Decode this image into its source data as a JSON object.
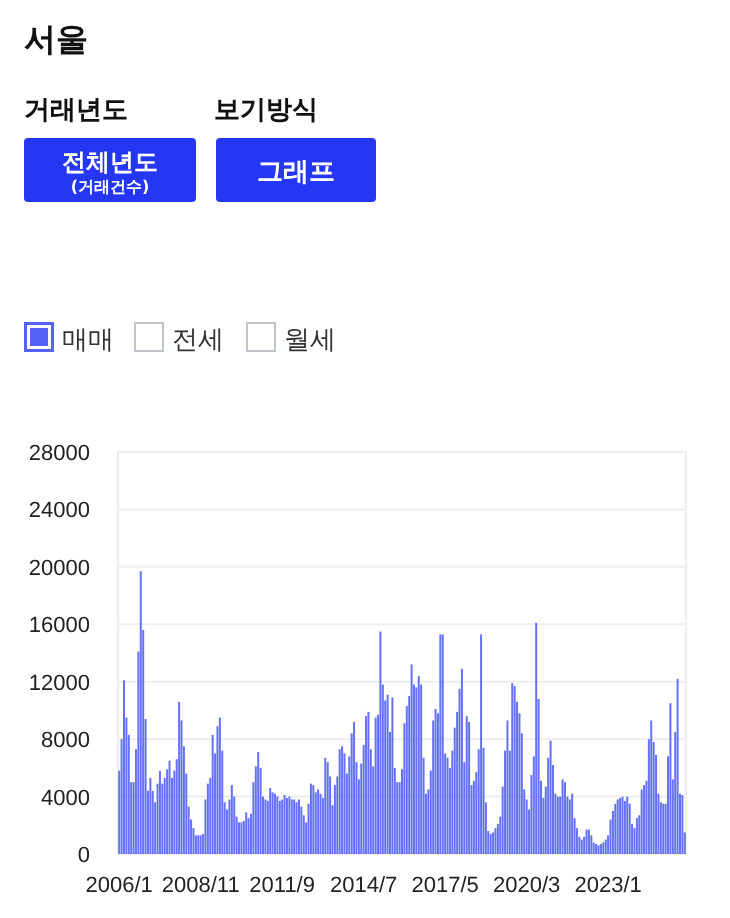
{
  "chart_data": {
    "type": "bar",
    "title": "서울",
    "annotations": [
      "거래년도",
      "보기방식",
      "전체년도",
      "(거래건수)",
      "그래프",
      "전세",
      "월세"
    ],
    "categories": [
      "2006/1",
      null,
      null,
      null,
      null,
      null,
      null,
      null,
      null,
      null,
      null,
      null,
      null,
      null,
      null,
      null,
      null,
      null,
      null,
      null,
      null,
      null,
      null,
      null,
      null,
      null,
      null,
      null,
      null,
      null,
      null,
      null,
      null,
      null,
      "2008/11",
      null,
      null,
      null,
      null,
      null,
      null,
      null,
      null,
      null,
      null,
      null,
      null,
      null,
      null,
      null,
      null,
      null,
      null,
      null,
      null,
      null,
      null,
      null,
      null,
      null,
      null,
      null,
      null,
      null,
      null,
      null,
      null,
      null,
      "2011/9",
      null,
      null,
      null,
      null,
      null,
      null,
      null,
      null,
      null,
      null,
      null,
      null,
      null,
      null,
      null,
      null,
      null,
      null,
      null,
      null,
      null,
      null,
      null,
      null,
      null,
      null,
      null,
      null,
      null,
      null,
      null,
      null,
      null,
      "2014/7",
      null,
      null,
      null,
      null,
      null,
      null,
      null,
      null,
      null,
      null,
      null,
      null,
      null,
      null,
      null,
      null,
      null,
      null,
      null,
      null,
      null,
      null,
      null,
      null,
      null,
      null,
      null,
      null,
      null,
      null,
      null,
      null,
      null,
      "2017/5",
      null,
      null,
      null,
      null,
      null,
      null,
      null,
      null,
      null,
      null,
      null,
      null,
      null,
      null,
      null,
      null,
      null,
      null,
      null,
      null,
      null,
      null,
      null,
      null,
      null,
      null,
      null,
      null,
      null,
      null,
      null,
      null,
      null,
      "2020/3",
      null,
      null,
      null,
      null,
      null,
      null,
      null,
      null,
      null,
      null,
      null,
      null,
      null,
      null,
      null,
      null,
      null,
      null,
      null,
      null,
      null,
      null,
      null,
      null,
      null,
      null,
      null,
      null,
      null,
      null,
      null,
      null,
      null,
      "2023/1",
      null,
      null,
      null,
      null,
      null,
      null,
      null,
      null,
      null,
      null,
      null,
      null,
      null,
      null,
      null,
      null,
      null,
      null,
      null,
      null,
      null,
      null,
      null,
      null,
      null,
      null,
      null,
      null,
      null,
      null,
      null,
      null
    ],
    "series": [
      {
        "name": "매매",
        "color": "#5563f5",
        "values": [
          5800,
          8000,
          12100,
          9500,
          8300,
          5000,
          5000,
          7300,
          14100,
          19700,
          15600,
          9400,
          4400,
          5300,
          4400,
          3600,
          4900,
          5800,
          4900,
          5300,
          5900,
          6500,
          5300,
          5800,
          6600,
          10600,
          9300,
          7500,
          5600,
          3300,
          2400,
          1800,
          1300,
          1300,
          1300,
          1400,
          3800,
          4900,
          5300,
          8300,
          7000,
          8900,
          9500,
          7200,
          3600,
          3100,
          3800,
          4800,
          4000,
          2600,
          2200,
          2200,
          2300,
          2900,
          2500,
          2800,
          5000,
          6100,
          7100,
          6000,
          4000,
          3800,
          3700,
          4600,
          4300,
          4200,
          4000,
          3700,
          3800,
          4100,
          3900,
          4000,
          3800,
          3800,
          3600,
          3800,
          3300,
          2700,
          2200,
          3500,
          4900,
          4800,
          4300,
          4500,
          4200,
          3900,
          6700,
          6400,
          5400,
          3400,
          4800,
          5400,
          7300,
          7500,
          7000,
          5600,
          6800,
          8400,
          9200,
          6400,
          5200,
          6300,
          7600,
          9600,
          9900,
          7300,
          6100,
          9500,
          9700,
          15500,
          11800,
          10700,
          11100,
          8500,
          10900,
          6000,
          5000,
          5000,
          5900,
          9100,
          10300,
          11000,
          13200,
          11800,
          11600,
          12400,
          11800,
          6700,
          4200,
          4500,
          5800,
          9300,
          10100,
          9800,
          15300,
          15300,
          7000,
          6700,
          6000,
          7200,
          8800,
          9900,
          11500,
          12900,
          6400,
          9600,
          9200,
          4800,
          5100,
          5700,
          7300,
          15300,
          7400,
          3600,
          1600,
          1400,
          1500,
          1800,
          2100,
          2600,
          4700,
          7200,
          9300,
          7200,
          11900,
          11700,
          10600,
          9800,
          8400,
          4500,
          3800,
          3100,
          5500,
          6800,
          16100,
          10800,
          5100,
          3900,
          4700,
          6700,
          7900,
          6200,
          4200,
          4000,
          4000,
          5200,
          5000,
          4000,
          3800,
          4200,
          2500,
          1800,
          1200,
          1000,
          1200,
          1700,
          1700,
          1300,
          800,
          700,
          600,
          700,
          800,
          1000,
          1300,
          2400,
          3000,
          3500,
          3800,
          3900,
          4000,
          3700,
          4000,
          3500,
          2100,
          1800,
          2500,
          2700,
          4500,
          4800,
          5100,
          8000,
          9300,
          7800,
          6900,
          4200,
          3600,
          3500,
          3500,
          6800,
          10500,
          5200,
          8500,
          12200,
          4200,
          4100,
          1500
        ]
      }
    ],
    "ylim": [
      0,
      28000
    ],
    "yticks": [
      0,
      4000,
      8000,
      12000,
      16000,
      20000,
      24000,
      28000
    ],
    "grid": "y",
    "legend": "top left"
  }
}
